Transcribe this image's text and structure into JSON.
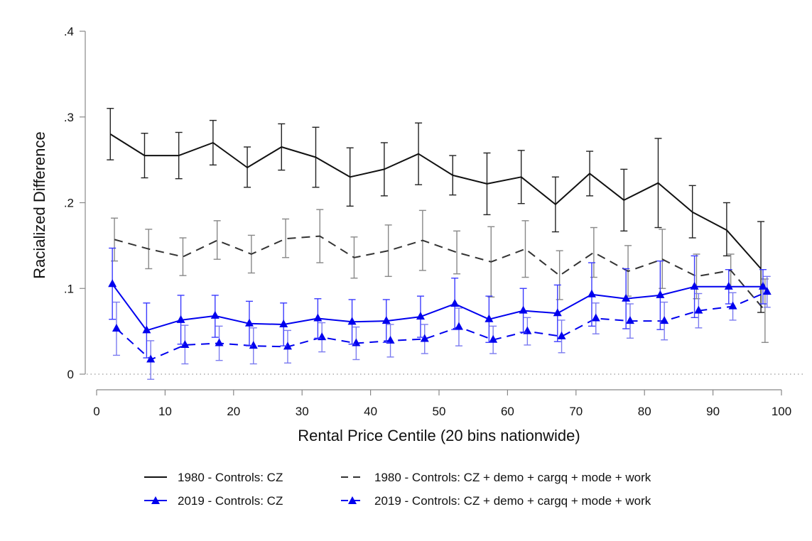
{
  "chart_data": {
    "type": "line",
    "title": "",
    "xlabel": "Rental Price Centile (20 bins nationwide)",
    "ylabel": "Racialized Difference",
    "xlim": [
      0,
      100
    ],
    "ylim": [
      0,
      0.4
    ],
    "xticks": [
      0,
      10,
      20,
      30,
      40,
      50,
      60,
      70,
      80,
      90,
      100
    ],
    "xtick_labels": [
      "0",
      "10",
      "20",
      "30",
      "40",
      "50",
      "60",
      "70",
      "80",
      "90",
      "100"
    ],
    "yticks": [
      0,
      0.1,
      0.2,
      0.3,
      0.4
    ],
    "ytick_labels": [
      "0",
      ".1",
      ".2",
      ".3",
      ".4"
    ],
    "reference_line": {
      "y": 0,
      "style": "dotted"
    },
    "legend_position": "bottom",
    "series": [
      {
        "name": "1980 - Controls: CZ",
        "color": "#111111",
        "errorbar_color": "#222222",
        "dash": "solid",
        "marker": "none",
        "x": [
          2,
          7,
          12,
          17,
          22,
          27,
          32,
          37,
          42,
          47,
          52,
          57,
          62,
          67,
          72,
          77,
          82,
          87,
          92,
          97
        ],
        "y": [
          0.28,
          0.255,
          0.255,
          0.27,
          0.241,
          0.265,
          0.253,
          0.23,
          0.239,
          0.257,
          0.232,
          0.222,
          0.23,
          0.198,
          0.234,
          0.203,
          0.223,
          0.189,
          0.168,
          0.123
        ],
        "lower": [
          0.25,
          0.229,
          0.228,
          0.244,
          0.218,
          0.238,
          0.218,
          0.196,
          0.208,
          0.221,
          0.209,
          0.186,
          0.199,
          0.166,
          0.208,
          0.167,
          0.171,
          0.159,
          0.138,
          0.072
        ],
        "upper": [
          0.31,
          0.281,
          0.282,
          0.296,
          0.265,
          0.292,
          0.288,
          0.264,
          0.27,
          0.293,
          0.255,
          0.258,
          0.261,
          0.23,
          0.26,
          0.239,
          0.275,
          0.22,
          0.2,
          0.178
        ]
      },
      {
        "name": "1980 - Controls: CZ + demo + cargq + mode + work",
        "color": "#333333",
        "errorbar_color": "#888888",
        "dash": "dashed",
        "marker": "none",
        "x": [
          2.6,
          7.6,
          12.6,
          17.6,
          22.6,
          27.6,
          32.6,
          37.6,
          42.6,
          47.6,
          52.6,
          57.6,
          62.6,
          67.6,
          72.6,
          77.6,
          82.6,
          87.6,
          92.6,
          97.6
        ],
        "y": [
          0.157,
          0.146,
          0.137,
          0.156,
          0.14,
          0.158,
          0.161,
          0.136,
          0.144,
          0.156,
          0.142,
          0.131,
          0.146,
          0.115,
          0.142,
          0.12,
          0.134,
          0.114,
          0.121,
          0.074
        ],
        "lower": [
          0.132,
          0.123,
          0.115,
          0.134,
          0.118,
          0.136,
          0.13,
          0.112,
          0.114,
          0.121,
          0.117,
          0.09,
          0.113,
          0.087,
          0.113,
          0.091,
          0.1,
          0.088,
          0.102,
          0.037
        ],
        "upper": [
          0.182,
          0.169,
          0.159,
          0.179,
          0.162,
          0.181,
          0.192,
          0.16,
          0.174,
          0.191,
          0.167,
          0.172,
          0.179,
          0.144,
          0.171,
          0.15,
          0.169,
          0.14,
          0.14,
          0.111
        ]
      },
      {
        "name": "2019 - Controls: CZ",
        "color": "#0000ee",
        "errorbar_color": "#3b3bff",
        "dash": "solid",
        "marker": "triangle",
        "x": [
          2.3,
          7.3,
          12.3,
          17.3,
          22.3,
          27.3,
          32.3,
          37.3,
          42.3,
          47.3,
          52.3,
          57.3,
          62.3,
          67.3,
          72.3,
          77.3,
          82.3,
          87.3,
          92.3,
          97.3
        ],
        "y": [
          0.105,
          0.051,
          0.063,
          0.068,
          0.059,
          0.058,
          0.065,
          0.061,
          0.062,
          0.067,
          0.082,
          0.064,
          0.074,
          0.071,
          0.093,
          0.088,
          0.092,
          0.102,
          0.102,
          0.102
        ],
        "lower": [
          0.064,
          0.019,
          0.035,
          0.043,
          0.033,
          0.033,
          0.042,
          0.035,
          0.037,
          0.043,
          0.052,
          0.037,
          0.049,
          0.038,
          0.056,
          0.053,
          0.052,
          0.066,
          0.082,
          0.082
        ],
        "upper": [
          0.147,
          0.083,
          0.092,
          0.092,
          0.085,
          0.083,
          0.088,
          0.087,
          0.087,
          0.091,
          0.112,
          0.091,
          0.1,
          0.104,
          0.13,
          0.123,
          0.132,
          0.138,
          0.122,
          0.122
        ]
      },
      {
        "name": "2019 - Controls: CZ + demo + cargq + mode + work",
        "color": "#0000ee",
        "errorbar_color": "#7b7bf0",
        "dash": "dashed",
        "marker": "triangle",
        "x": [
          2.9,
          7.9,
          12.9,
          17.9,
          22.9,
          27.9,
          32.9,
          37.9,
          42.9,
          47.9,
          52.9,
          57.9,
          62.9,
          67.9,
          72.9,
          77.9,
          82.9,
          87.9,
          92.9,
          97.9
        ],
        "y": [
          0.053,
          0.017,
          0.034,
          0.036,
          0.033,
          0.032,
          0.043,
          0.036,
          0.039,
          0.041,
          0.055,
          0.04,
          0.05,
          0.044,
          0.065,
          0.062,
          0.062,
          0.074,
          0.079,
          0.096
        ],
        "lower": [
          0.022,
          -0.006,
          0.012,
          0.016,
          0.012,
          0.013,
          0.026,
          0.017,
          0.02,
          0.024,
          0.033,
          0.024,
          0.034,
          0.025,
          0.047,
          0.042,
          0.04,
          0.054,
          0.063,
          0.078
        ],
        "upper": [
          0.084,
          0.039,
          0.057,
          0.056,
          0.054,
          0.051,
          0.06,
          0.055,
          0.058,
          0.058,
          0.077,
          0.056,
          0.066,
          0.063,
          0.083,
          0.082,
          0.084,
          0.094,
          0.095,
          0.114
        ]
      }
    ]
  }
}
